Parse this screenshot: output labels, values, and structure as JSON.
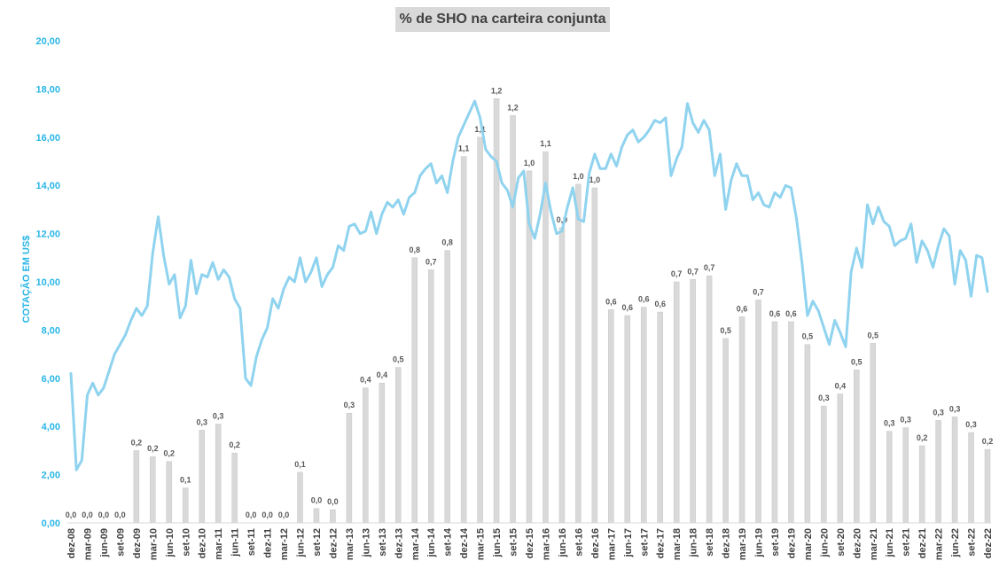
{
  "chart_data": {
    "type": "bar+line",
    "title": "% de SHO na carteira conjunta",
    "ylabel": "COTAÇÃO EM US$",
    "ylim": [
      0,
      20
    ],
    "yticks": [
      "0,00",
      "2,00",
      "4,00",
      "6,00",
      "8,00",
      "10,00",
      "12,00",
      "14,00",
      "16,00",
      "18,00",
      "20,00"
    ],
    "grid": false,
    "colors": {
      "bars": "#d9d9d9",
      "line": "#8fd3ef",
      "axis_text": "#29b6e6"
    },
    "x_tick_labels": [
      "dez-08",
      "mar-09",
      "jun-09",
      "set-09",
      "dez-09",
      "mar-10",
      "jun-10",
      "set-10",
      "dez-10",
      "mar-11",
      "jun-11",
      "set-11",
      "dez-11",
      "mar-12",
      "jun-12",
      "set-12",
      "dez-12",
      "mar-13",
      "jun-13",
      "set-13",
      "dez-13",
      "mar-14",
      "jun-14",
      "set-14",
      "dez-14",
      "mar-15",
      "jun-15",
      "set-15",
      "dez-15",
      "mar-16",
      "jun-16",
      "set-16",
      "dez-16",
      "mar-17",
      "jun-17",
      "set-17",
      "dez-17",
      "mar-18",
      "jun-18",
      "set-18",
      "dez-18",
      "mar-19",
      "jun-19",
      "set-19",
      "dez-19",
      "mar-20",
      "jun-20",
      "set-20",
      "dez-20",
      "mar-21",
      "jun-21",
      "set-21",
      "dez-21",
      "mar-22",
      "jun-22",
      "set-22",
      "dez-22"
    ],
    "bar_series": {
      "values": [
        0,
        0,
        0,
        0,
        3.0,
        2.75,
        2.55,
        1.45,
        3.85,
        4.1,
        2.9,
        0,
        0,
        0,
        2.1,
        0.6,
        0.55,
        4.55,
        5.6,
        5.8,
        6.45,
        11.0,
        10.5,
        11.3,
        15.2,
        16.0,
        17.6,
        16.9,
        14.6,
        15.4,
        12.25,
        14.05,
        13.9,
        8.85,
        8.6,
        8.95,
        8.75,
        10.0,
        10.1,
        10.25,
        7.65,
        8.55,
        9.25,
        8.35,
        8.35,
        7.4,
        4.85,
        5.35,
        6.35,
        7.45,
        3.8,
        3.95,
        3.2,
        4.25,
        4.4,
        3.75,
        3.05
      ],
      "labels": [
        "0,0",
        "0,0",
        "0,0",
        "0,0",
        "0,2",
        "0,2",
        "0,2",
        "0,1",
        "0,3",
        "0,3",
        "0,2",
        "0,0",
        "0,0",
        "0,0",
        "0,1",
        "0,0",
        "0,0",
        "0,3",
        "0,4",
        "0,4",
        "0,5",
        "0,8",
        "0,7",
        "0,8",
        "1,1",
        "1,1",
        "1,2",
        "1,2",
        "1,0",
        "1,1",
        "0,9",
        "1,0",
        "1,0",
        "0,6",
        "0,6",
        "0,6",
        "0,6",
        "0,7",
        "0,7",
        "0,7",
        "0,5",
        "0,6",
        "0,7",
        "0,6",
        "0,6",
        "0,5",
        "0,3",
        "0,4",
        "0,5",
        "0,5",
        "0,3",
        "0,3",
        "0,2",
        "0,3",
        "0,3",
        "0,3",
        "0,2"
      ]
    },
    "line_series": {
      "values": [
        6.2,
        2.2,
        2.6,
        5.3,
        5.8,
        5.3,
        5.6,
        6.3,
        7.0,
        7.4,
        7.8,
        8.4,
        8.9,
        8.6,
        9.0,
        11.2,
        12.7,
        11.1,
        9.9,
        10.3,
        8.5,
        9.0,
        10.9,
        9.5,
        10.3,
        10.2,
        10.8,
        10.1,
        10.5,
        10.2,
        9.3,
        8.9,
        6.0,
        5.7,
        6.9,
        7.6,
        8.1,
        9.3,
        8.9,
        9.7,
        10.2,
        10.0,
        11.0,
        10.0,
        10.4,
        11.0,
        9.8,
        10.3,
        10.6,
        11.5,
        11.3,
        12.3,
        12.4,
        12.0,
        12.1,
        12.9,
        12.0,
        12.8,
        13.3,
        13.1,
        13.4,
        12.8,
        13.5,
        13.7,
        14.4,
        14.7,
        14.9,
        14.1,
        14.4,
        13.7,
        15.0,
        16.0,
        16.5,
        17.0,
        17.5,
        16.8,
        15.5,
        15.2,
        15.0,
        14.1,
        13.8,
        13.1,
        14.3,
        14.6,
        12.4,
        11.8,
        12.8,
        14.1,
        12.9,
        12.0,
        12.1,
        13.1,
        13.9,
        12.6,
        12.5,
        14.5,
        15.3,
        14.7,
        14.7,
        15.3,
        14.8,
        15.6,
        16.1,
        16.3,
        15.8,
        16.0,
        16.3,
        16.7,
        16.6,
        16.8,
        14.4,
        15.1,
        15.6,
        17.4,
        16.6,
        16.2,
        16.7,
        16.3,
        14.4,
        15.3,
        13.0,
        14.2,
        14.9,
        14.4,
        14.4,
        13.4,
        13.7,
        13.2,
        13.1,
        13.7,
        13.5,
        14.0,
        13.9,
        12.6,
        10.8,
        8.6,
        9.2,
        8.8,
        8.1,
        7.4,
        8.4,
        7.9,
        7.3,
        10.4,
        11.4,
        10.6,
        13.2,
        12.4,
        13.1,
        12.5,
        12.3,
        11.5,
        11.7,
        11.8,
        12.4,
        10.8,
        11.7,
        11.3,
        10.6,
        11.5,
        12.2,
        11.9,
        9.9,
        11.3,
        10.9,
        9.4,
        11.1,
        11.0,
        9.6
      ]
    }
  }
}
